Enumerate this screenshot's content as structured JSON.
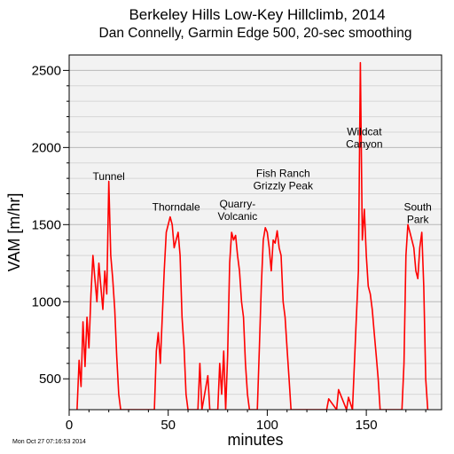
{
  "chart_data": {
    "type": "line",
    "title": "Berkeley Hills Low-Key Hillclimb, 2014",
    "subtitle": "Dan Connelly, Garmin Edge 500, 20-sec smoothing",
    "xlabel": "minutes",
    "ylabel": "VAM [m/hr]",
    "xlim": [
      0,
      188
    ],
    "ylim": [
      300,
      2600
    ],
    "xticks": [
      0,
      50,
      100,
      150
    ],
    "yticks": [
      500,
      1000,
      1500,
      2000,
      2500
    ],
    "grid": true,
    "line_color": "#ff0000",
    "timestamp": "Mon Oct 27 07:16:53 2014",
    "annotations": [
      {
        "lines": [
          "Tunnel"
        ],
        "x": 20,
        "y": 1790
      },
      {
        "lines": [
          "Thorndale"
        ],
        "x": 54,
        "y": 1590
      },
      {
        "lines": [
          "Quarry-",
          "Volcanic"
        ],
        "x": 85,
        "y": 1530
      },
      {
        "lines": [
          "Fish Ranch",
          "Grizzly Peak"
        ],
        "x": 108,
        "y": 1730
      },
      {
        "lines": [
          "Wildcat",
          "Canyon"
        ],
        "x": 149,
        "y": 2000
      },
      {
        "lines": [
          "South",
          "Park"
        ],
        "x": 176,
        "y": 1510
      }
    ],
    "series": [
      {
        "x": [
          4,
          5,
          6,
          7,
          8,
          9,
          10,
          11,
          12,
          13,
          14,
          15,
          16,
          17,
          18,
          19,
          20,
          21,
          22,
          23,
          24,
          25,
          26,
          27,
          28,
          29,
          30,
          31,
          43,
          44,
          45,
          46,
          47,
          48,
          49,
          50,
          51,
          52,
          53,
          54,
          55,
          56,
          57,
          58,
          59,
          60,
          65,
          66,
          67,
          70,
          71,
          75,
          76,
          77,
          78,
          79,
          80,
          81,
          82,
          83,
          84,
          85,
          86,
          87,
          88,
          89,
          90,
          91,
          95,
          96,
          97,
          98,
          99,
          100,
          101,
          102,
          103,
          104,
          105,
          106,
          107,
          108,
          109,
          110,
          111,
          112,
          113,
          130,
          131,
          135,
          136,
          140,
          141,
          143,
          144,
          145,
          146,
          147,
          148,
          149,
          150,
          151,
          152,
          153,
          154,
          155,
          156,
          157,
          158,
          168,
          169,
          170,
          171,
          172,
          173,
          174,
          175,
          176,
          177,
          178,
          179,
          180,
          181
        ],
        "y": [
          300,
          620,
          450,
          870,
          580,
          900,
          700,
          1050,
          1300,
          1150,
          1000,
          1250,
          1100,
          950,
          1200,
          1050,
          1780,
          1300,
          1150,
          950,
          650,
          400,
          300,
          300,
          300,
          300,
          300,
          300,
          300,
          680,
          800,
          600,
          900,
          1200,
          1450,
          1500,
          1550,
          1500,
          1350,
          1400,
          1450,
          1300,
          900,
          700,
          400,
          300,
          300,
          600,
          300,
          520,
          300,
          300,
          600,
          400,
          680,
          300,
          650,
          1250,
          1450,
          1400,
          1430,
          1300,
          1200,
          1000,
          900,
          600,
          400,
          300,
          300,
          700,
          1100,
          1400,
          1480,
          1450,
          1350,
          1200,
          1400,
          1380,
          1460,
          1350,
          1300,
          1000,
          900,
          700,
          500,
          300,
          300,
          300,
          370,
          300,
          430,
          300,
          380,
          300,
          600,
          900,
          1200,
          2550,
          1400,
          1600,
          1300,
          1100,
          1050,
          950,
          800,
          650,
          500,
          300,
          300,
          300,
          600,
          1300,
          1500,
          1450,
          1400,
          1350,
          1200,
          1150,
          1350,
          1450,
          1100,
          500,
          300
        ]
      }
    ]
  }
}
